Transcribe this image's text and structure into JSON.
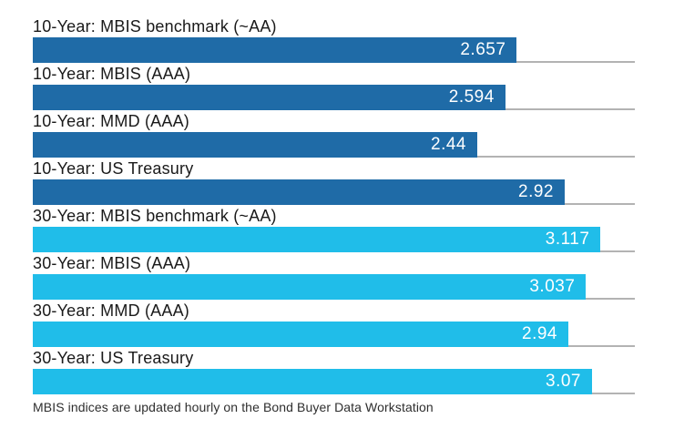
{
  "chart_data": {
    "type": "bar",
    "orientation": "horizontal",
    "title": "",
    "xlabel": "",
    "ylabel": "",
    "xlim": [
      0,
      3.305
    ],
    "grid": false,
    "legend": "none",
    "value_label_position": "inside-end",
    "rows": [
      {
        "label": "10-Year: MBIS benchmark (~AA)",
        "value": 2.657,
        "display": "2.657",
        "group": "10-year"
      },
      {
        "label": "10-Year: MBIS (AAA)",
        "value": 2.594,
        "display": "2.594",
        "group": "10-year"
      },
      {
        "label": "10-Year: MMD (AAA)",
        "value": 2.44,
        "display": "2.44",
        "group": "10-year"
      },
      {
        "label": "10-Year: US Treasury",
        "value": 2.92,
        "display": "2.92",
        "group": "10-year"
      },
      {
        "label": "30-Year: MBIS benchmark (~AA)",
        "value": 3.117,
        "display": "3.117",
        "group": "30-year"
      },
      {
        "label": "30-Year: MBIS (AAA)",
        "value": 3.037,
        "display": "3.037",
        "group": "30-year"
      },
      {
        "label": "30-Year: MMD (AAA)",
        "value": 2.94,
        "display": "2.94",
        "group": "30-year"
      },
      {
        "label": "30-Year: US Treasury",
        "value": 3.07,
        "display": "3.07",
        "group": "30-year"
      }
    ],
    "groups": {
      "10-year": {
        "color": "#1f6ba7"
      },
      "30-year": {
        "color": "#20bde9"
      }
    },
    "colors": {
      "separator_line": "#b3b3b3",
      "value_text": "#ffffff",
      "label_text": "#1a1a1a"
    }
  },
  "footer": {
    "note": "MBIS indices are updated hourly on the Bond Buyer Data Workstation"
  }
}
